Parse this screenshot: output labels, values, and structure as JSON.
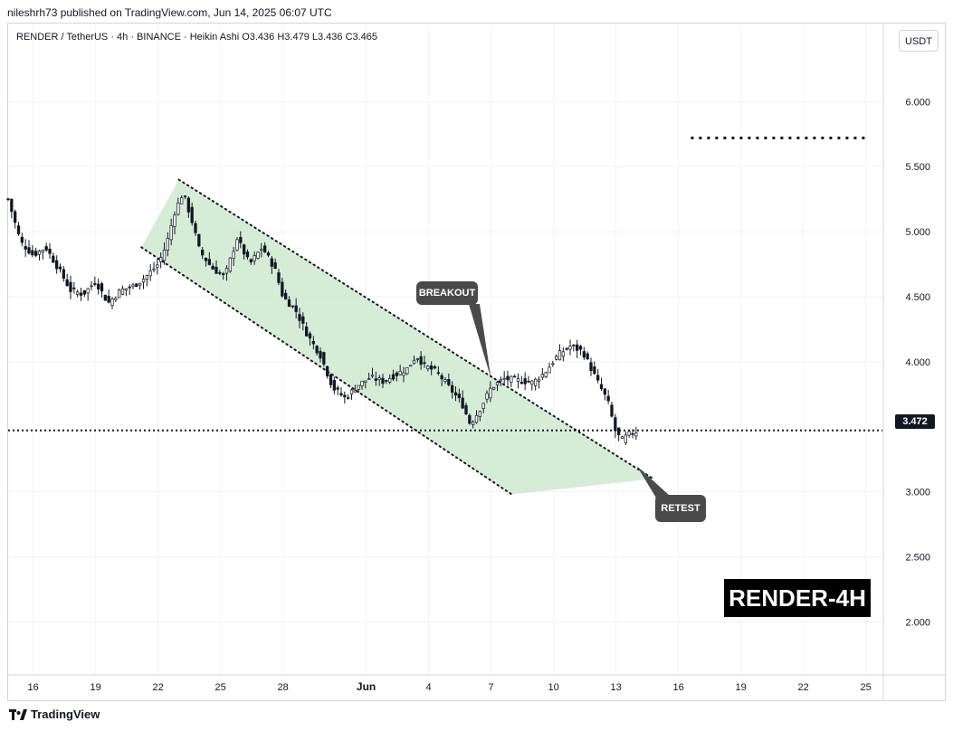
{
  "header": {
    "publish_line": "nileshrh73 published on TradingView.com, Jun 14, 2025 06:07 UTC"
  },
  "legend": {
    "text": "RENDER / TetherUS · 4h · BINANCE · Heikin Ashi  O3.436  H3.479  L3.436  C3.465"
  },
  "currency_button": "USDT",
  "footer": {
    "brand": "TradingView"
  },
  "chart_data": {
    "type": "candlestick",
    "symbol": "RENDER / TetherUS",
    "interval": "4h",
    "exchange": "BINANCE",
    "style": "Heikin Ashi",
    "ohlc": {
      "open": 3.436,
      "high": 3.479,
      "low": 3.436,
      "close": 3.465
    },
    "ylim": [
      1.6,
      6.6
    ],
    "y_ticks": [
      "6.000",
      "5.500",
      "5.000",
      "4.500",
      "4.000",
      "3.000",
      "2.500",
      "2.000"
    ],
    "x_ticks": [
      "16",
      "19",
      "22",
      "25",
      "28",
      "Jun",
      "4",
      "7",
      "10",
      "13",
      "16",
      "19",
      "22",
      "25"
    ],
    "x_tick_days": [
      16,
      19,
      22,
      25,
      28,
      32,
      35,
      38,
      41,
      44,
      47,
      50,
      53,
      56
    ],
    "xlim": [
      14.8,
      56.8
    ],
    "grid": true,
    "last_price": {
      "label": "3.472",
      "value": 3.472
    },
    "price_path": [
      [
        14.8,
        5.25
      ],
      [
        15.4,
        4.92
      ],
      [
        16.0,
        4.82
      ],
      [
        16.6,
        4.88
      ],
      [
        17.2,
        4.72
      ],
      [
        17.8,
        4.55
      ],
      [
        18.4,
        4.52
      ],
      [
        19.0,
        4.62
      ],
      [
        19.6,
        4.45
      ],
      [
        20.2,
        4.55
      ],
      [
        20.8,
        4.58
      ],
      [
        21.4,
        4.65
      ],
      [
        22.0,
        4.75
      ],
      [
        22.4,
        4.9
      ],
      [
        22.8,
        5.15
      ],
      [
        23.2,
        5.3
      ],
      [
        23.6,
        5.1
      ],
      [
        24.0,
        4.85
      ],
      [
        24.6,
        4.72
      ],
      [
        25.2,
        4.65
      ],
      [
        25.8,
        4.95
      ],
      [
        26.4,
        4.75
      ],
      [
        27.0,
        4.88
      ],
      [
        27.6,
        4.72
      ],
      [
        28.0,
        4.5
      ],
      [
        28.6,
        4.4
      ],
      [
        29.2,
        4.2
      ],
      [
        29.8,
        4.05
      ],
      [
        30.4,
        3.8
      ],
      [
        31.0,
        3.72
      ],
      [
        31.6,
        3.82
      ],
      [
        32.2,
        3.88
      ],
      [
        32.8,
        3.85
      ],
      [
        33.4,
        3.9
      ],
      [
        34.0,
        3.95
      ],
      [
        34.4,
        4.05
      ],
      [
        34.8,
        3.97
      ],
      [
        35.4,
        3.92
      ],
      [
        36.0,
        3.8
      ],
      [
        36.6,
        3.68
      ],
      [
        37.0,
        3.52
      ],
      [
        37.4,
        3.62
      ],
      [
        38.0,
        3.8
      ],
      [
        38.6,
        3.87
      ],
      [
        39.2,
        3.86
      ],
      [
        40.0,
        3.84
      ],
      [
        40.6,
        3.92
      ],
      [
        41.2,
        4.05
      ],
      [
        41.8,
        4.12
      ],
      [
        42.4,
        4.08
      ],
      [
        42.8,
        3.95
      ],
      [
        43.2,
        3.82
      ],
      [
        43.6,
        3.7
      ],
      [
        44.0,
        3.45
      ],
      [
        44.3,
        3.4
      ],
      [
        44.6,
        3.44
      ],
      [
        45.0,
        3.465
      ]
    ],
    "annotations": [
      {
        "type": "channel",
        "label": "",
        "upper": [
          [
            23.0,
            5.4
          ],
          [
            45.8,
            3.1
          ]
        ],
        "lower": [
          [
            21.2,
            4.88
          ],
          [
            39.0,
            2.98
          ]
        ],
        "color": "#c8e6c9"
      },
      {
        "type": "callout",
        "label": "BREAKOUT",
        "x": 38.0,
        "y": 3.87
      },
      {
        "type": "callout",
        "label": "RETEST",
        "x": 45.0,
        "y": 3.2
      },
      {
        "type": "dotted_level",
        "label": "",
        "y": 5.72,
        "x_range": [
          47.6,
          56.0
        ]
      }
    ],
    "watermark": "RENDER-4H",
    "colors": {
      "candle": "#131722",
      "channel_fill": "#c8e6c9",
      "grid": "#f0f3fa",
      "callout": "#4a4a4a"
    }
  }
}
